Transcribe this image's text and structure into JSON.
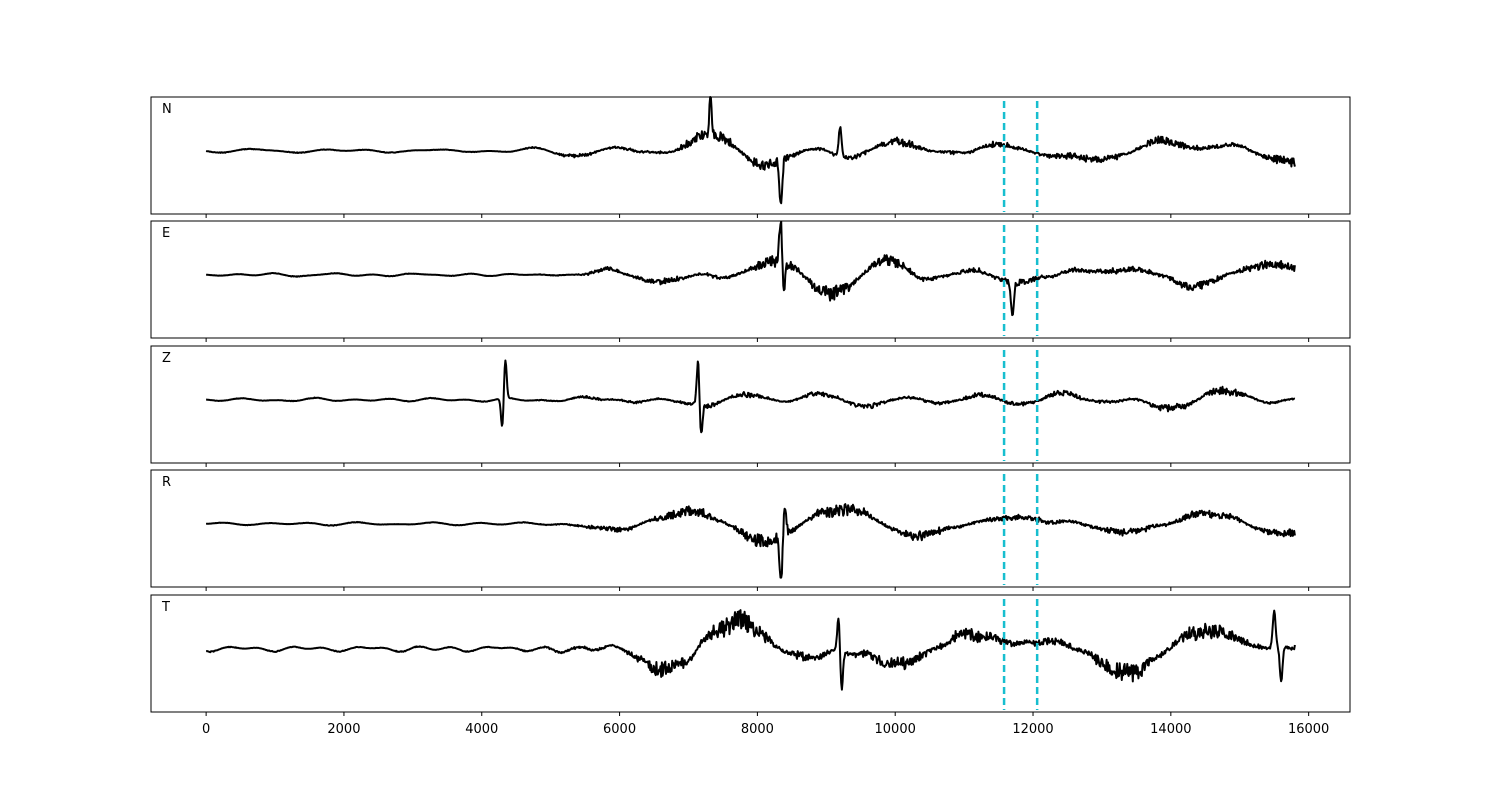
{
  "chart_data": {
    "type": "line",
    "panels": [
      {
        "label": "N",
        "seed": 11,
        "noise_amp": 0.045,
        "signal_amp": 0.22,
        "onset": 4400,
        "spikes": [
          [
            7320,
            0.62
          ],
          [
            8340,
            -0.75
          ],
          [
            9200,
            0.52
          ]
        ]
      },
      {
        "label": "E",
        "seed": 23,
        "noise_amp": 0.04,
        "signal_amp": 0.2,
        "onset": 4500,
        "spikes": [
          [
            8340,
            0.8
          ],
          [
            8380,
            -0.55
          ],
          [
            11700,
            -0.6
          ]
        ]
      },
      {
        "label": "Z",
        "seed": 37,
        "noise_amp": 0.035,
        "signal_amp": 0.17,
        "onset": 4320,
        "spikes": [
          [
            4340,
            0.7
          ],
          [
            4300,
            -0.55
          ],
          [
            7140,
            0.8
          ],
          [
            7180,
            -0.55
          ]
        ]
      },
      {
        "label": "R",
        "seed": 53,
        "noise_amp": 0.04,
        "signal_amp": 0.2,
        "onset": 4400,
        "spikes": [
          [
            8340,
            -0.85
          ],
          [
            8400,
            0.52
          ]
        ]
      },
      {
        "label": "T",
        "seed": 71,
        "noise_amp": 0.055,
        "signal_amp": 0.3,
        "onset": 4300,
        "spikes": [
          [
            9180,
            0.62
          ],
          [
            9220,
            -0.7
          ],
          [
            15500,
            0.62
          ],
          [
            15600,
            -0.6
          ]
        ]
      }
    ],
    "x_range": [
      0,
      15800
    ],
    "xlim": [
      -800,
      16600
    ],
    "ylim": [
      -1,
      1
    ],
    "x_ticks": [
      0,
      2000,
      4000,
      6000,
      8000,
      10000,
      12000,
      14000,
      16000
    ],
    "x_tick_labels": [
      "0",
      "2000",
      "4000",
      "6000",
      "8000",
      "10000",
      "12000",
      "14000",
      "16000"
    ],
    "markers": [
      11580,
      12060
    ],
    "colors": {
      "trace": "#000000",
      "marker": "#17becf",
      "axes": "#000000"
    },
    "grid": false,
    "legend": "none"
  }
}
